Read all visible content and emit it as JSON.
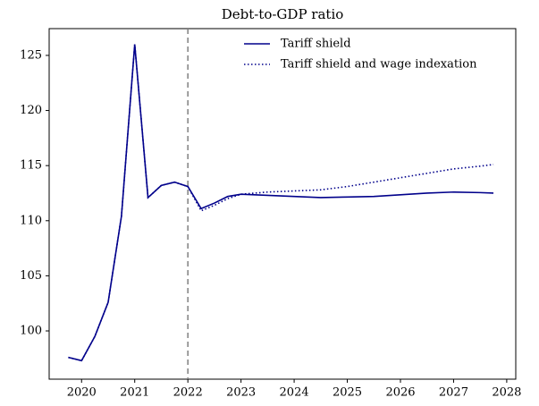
{
  "chart_data": {
    "type": "line",
    "title": "Debt-to-GDP ratio",
    "x": [
      2019.75,
      2020.0,
      2020.25,
      2020.5,
      2020.75,
      2021.0,
      2021.25,
      2021.5,
      2021.75,
      2022.0,
      2022.25,
      2022.5,
      2022.75,
      2023.0,
      2023.5,
      2024.0,
      2024.5,
      2025.0,
      2025.5,
      2026.0,
      2026.5,
      2027.0,
      2027.5,
      2027.75
    ],
    "series": [
      {
        "name": "Tariff shield",
        "color": "#00008b",
        "dash": "solid",
        "values": [
          97.6,
          97.3,
          99.5,
          102.6,
          110.4,
          126.0,
          112.1,
          113.2,
          113.5,
          113.1,
          111.1,
          111.6,
          112.2,
          112.4,
          112.3,
          112.2,
          112.1,
          112.15,
          112.2,
          112.35,
          112.5,
          112.6,
          112.55,
          112.5
        ]
      },
      {
        "name": "Tariff shield and wage indexation",
        "color": "#00008b",
        "dash": "dotted",
        "values": [
          97.6,
          97.3,
          99.5,
          102.6,
          110.4,
          126.0,
          112.1,
          113.2,
          113.5,
          113.1,
          110.9,
          111.4,
          112.0,
          112.4,
          112.6,
          112.7,
          112.8,
          113.1,
          113.5,
          113.9,
          114.3,
          114.7,
          114.95,
          115.1
        ]
      }
    ],
    "vline": 2022,
    "vline_color": "#808080",
    "xlim": [
      2019.39,
      2028.17
    ],
    "xticks": [
      2020,
      2021,
      2022,
      2023,
      2024,
      2025,
      2026,
      2027,
      2028
    ],
    "ylim": [
      95.62,
      127.43
    ],
    "yticks": [
      100,
      105,
      110,
      115,
      120,
      125
    ],
    "grid": false,
    "legend": "upper center"
  }
}
